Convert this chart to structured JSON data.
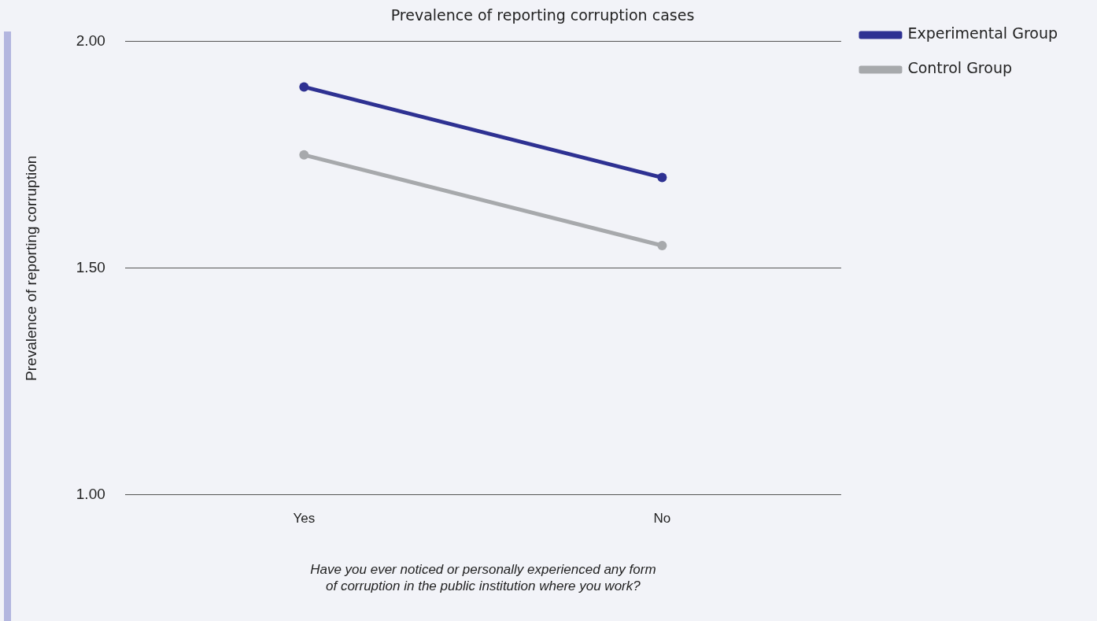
{
  "chart_data": {
    "type": "line",
    "title": "Prevalence of reporting corruption cases",
    "xlabel": "Have you ever noticed or personally experienced any form of corruption in the public institution where you work?",
    "ylabel": "Prevalence of reporting corruption",
    "categories": [
      "Yes",
      "No"
    ],
    "series": [
      {
        "name": "Experimental Group",
        "color": "#2e3192",
        "values": [
          1.9,
          1.7
        ]
      },
      {
        "name": "Control Group",
        "color": "#a7a9ac",
        "values": [
          1.75,
          1.55
        ]
      }
    ],
    "ylim": [
      1,
      2
    ],
    "yticks": [
      {
        "value": 1,
        "label": "1.00"
      },
      {
        "value": 1.5,
        "label": "1.50"
      },
      {
        "value": 2,
        "label": "2.00"
      }
    ],
    "grid": "y",
    "legend": "top right",
    "marker": "circle",
    "line_style": "solid"
  }
}
